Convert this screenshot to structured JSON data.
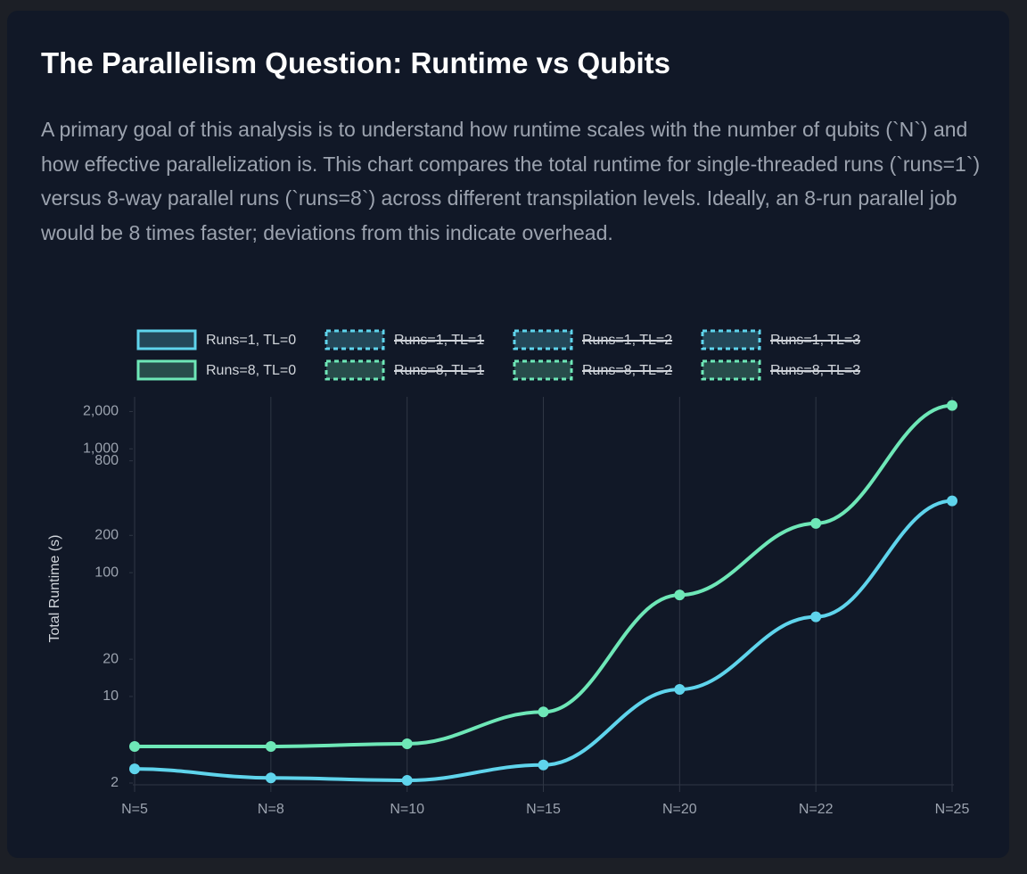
{
  "chart_data": {
    "type": "line",
    "title": "The Parallelism Question: Runtime vs Qubits",
    "subtitle": "A primary goal of this analysis is to understand how runtime scales with the number of qubits (`N`) and how effective parallelization is. This chart compares the total runtime for single-threaded runs (`runs=1`) versus 8-way parallel runs (`runs=8`) across different transpilation levels. Ideally, an 8-run parallel job would be 8 times faster; deviations from this indicate overhead.",
    "ylabel": "Total Runtime (s)",
    "categories": [
      "N=5",
      "N=8",
      "N=10",
      "N=15",
      "N=20",
      "N=22",
      "N=25"
    ],
    "ylog": true,
    "ylim": [
      2,
      3000
    ],
    "yticks": [
      2,
      10,
      20,
      100,
      200,
      800,
      {
        "value": 1000,
        "label": "1,000"
      },
      {
        "value": 2000,
        "label": "2,000"
      }
    ],
    "grid": "x",
    "legend": "top",
    "series": [
      {
        "name": "Runs=1, TL=0",
        "color": "#5fd4ec",
        "dashed": false,
        "hidden": false,
        "values": [
          2.6,
          2.2,
          2.1,
          2.8,
          11.4,
          44,
          380
        ]
      },
      {
        "name": "Runs=1, TL=1",
        "color": "#5fd4ec",
        "dashed": true,
        "hidden": true
      },
      {
        "name": "Runs=1, TL=2",
        "color": "#5fd4ec",
        "dashed": true,
        "hidden": true
      },
      {
        "name": "Runs=1, TL=3",
        "color": "#5fd4ec",
        "dashed": true,
        "hidden": true
      },
      {
        "name": "Runs=8, TL=0",
        "color": "#6ee7b7",
        "dashed": false,
        "hidden": false,
        "values": [
          3.95,
          3.95,
          4.15,
          7.5,
          66,
          250,
          2240
        ]
      },
      {
        "name": "Runs=8, TL=1",
        "color": "#6ee7b7",
        "dashed": true,
        "hidden": true
      },
      {
        "name": "Runs=8, TL=2",
        "color": "#6ee7b7",
        "dashed": true,
        "hidden": true
      },
      {
        "name": "Runs=8, TL=3",
        "color": "#6ee7b7",
        "dashed": true,
        "hidden": true
      }
    ]
  }
}
